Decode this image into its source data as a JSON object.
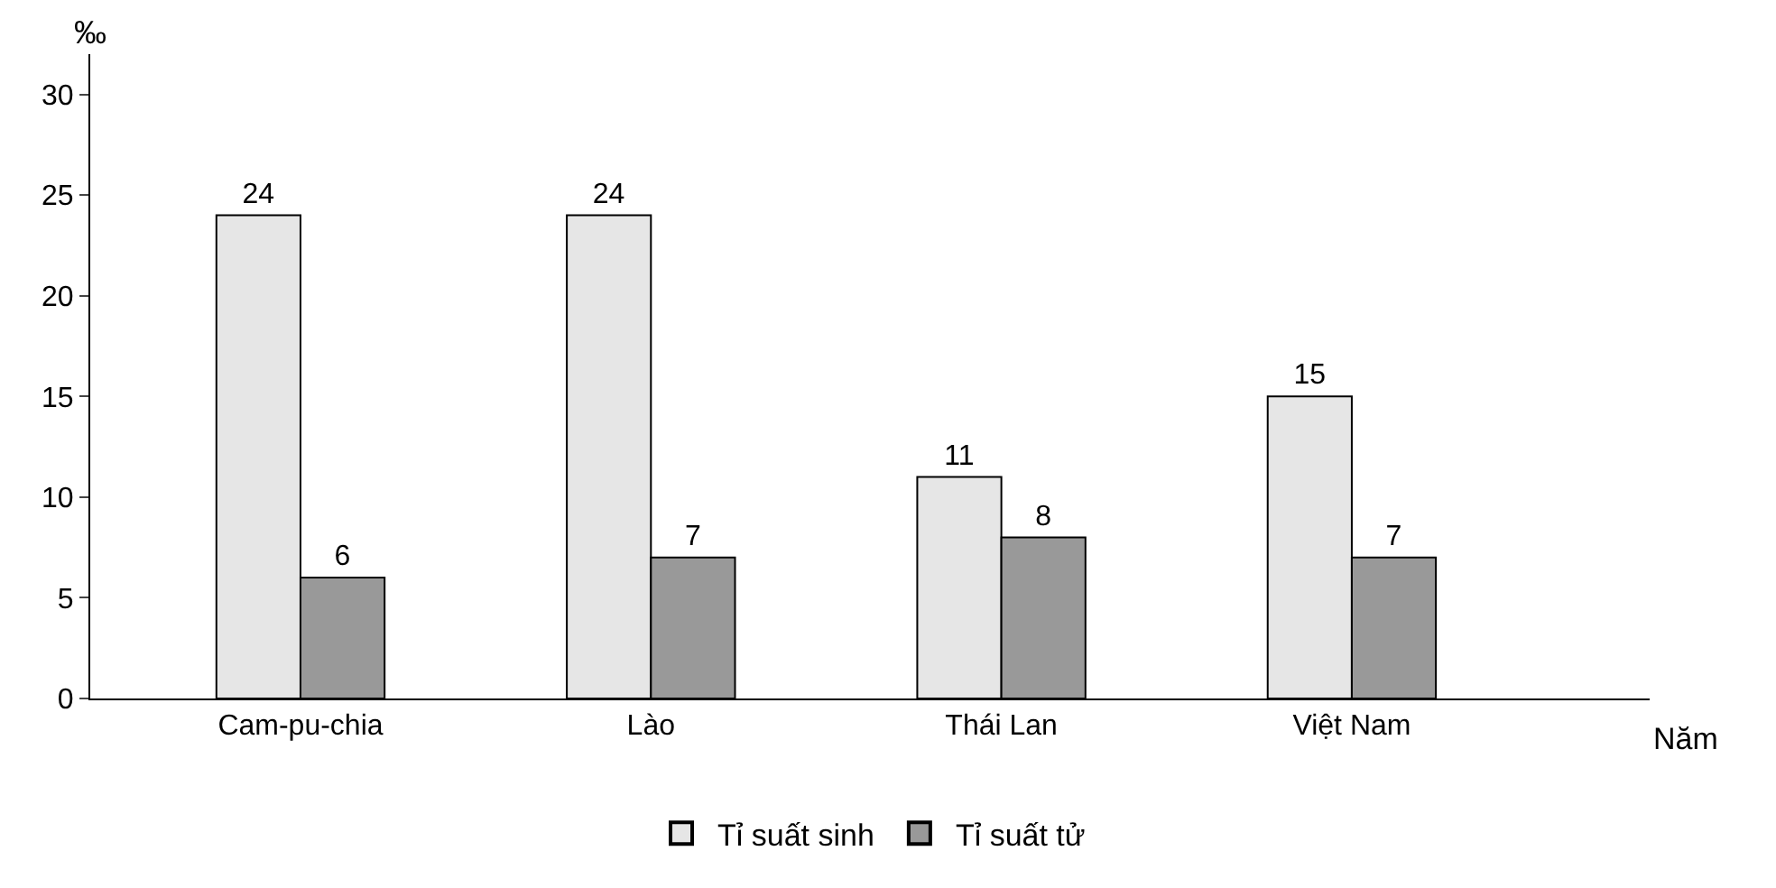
{
  "chart_data": {
    "type": "bar",
    "xlabel": "Năm",
    "ylabel": "‰",
    "categories": [
      "Cam-pu-chia",
      "Lào",
      "Thái Lan",
      "Việt Nam"
    ],
    "series": [
      {
        "name": "Tỉ suất sinh",
        "color": "#e6e6e6",
        "values": [
          24,
          24,
          11,
          15
        ]
      },
      {
        "name": "Tỉ suất tử",
        "color": "#999999",
        "values": [
          6,
          7,
          8,
          7
        ]
      }
    ],
    "ylim": [
      0,
      32
    ],
    "yticks": [
      0,
      5,
      10,
      15,
      20,
      25,
      30
    ],
    "legend": "bottom",
    "data_labels": true
  }
}
